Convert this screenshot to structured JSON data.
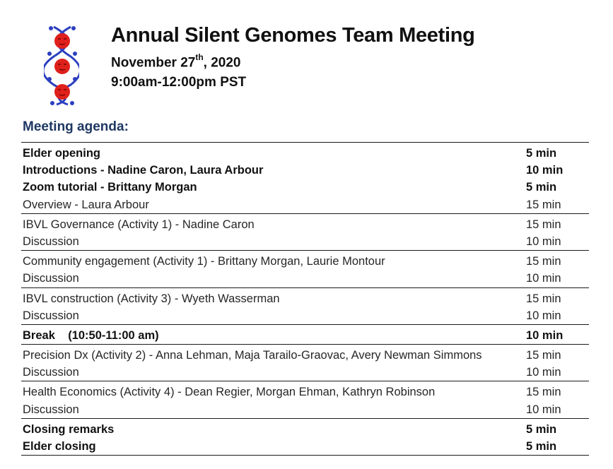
{
  "header": {
    "title": "Annual Silent Genomes Team Meeting",
    "date_main": "November 27",
    "date_sup": "th",
    "date_year": ", 2020",
    "time": "9:00am-12:00pm PST",
    "logo_icon": "dna-helix-faces-icon"
  },
  "agenda": {
    "heading": "Meeting agenda:",
    "blocks": [
      [
        {
          "item": "Elder opening",
          "duration": "5 min",
          "bold": true
        },
        {
          "item": "Introductions - Nadine Caron, Laura Arbour",
          "duration": "10 min",
          "bold": true
        },
        {
          "item": "Zoom tutorial - Brittany Morgan",
          "duration": "5 min",
          "bold": true
        },
        {
          "item": "Overview - Laura Arbour",
          "duration": "15 min",
          "bold": false
        }
      ],
      [
        {
          "item": "IBVL Governance (Activity 1) - Nadine Caron",
          "duration": "15 min",
          "bold": false
        },
        {
          "item": "Discussion",
          "duration": "10 min",
          "bold": false
        }
      ],
      [
        {
          "item": "Community engagement (Activity 1) - Brittany Morgan, Laurie Montour",
          "duration": "15 min",
          "bold": false
        },
        {
          "item": "Discussion",
          "duration": "10 min",
          "bold": false
        }
      ],
      [
        {
          "item": "IBVL construction (Activity 3) - Wyeth Wasserman",
          "duration": "15 min",
          "bold": false
        },
        {
          "item": "Discussion",
          "duration": "10 min",
          "bold": false
        }
      ],
      [
        {
          "item": "Break    (10:50-11:00 am)",
          "duration": "10 min",
          "bold": true
        }
      ],
      [
        {
          "item": "Precision Dx (Activity 2) - Anna Lehman, Maja Tarailo-Graovac, Avery Newman Simmons",
          "duration": "15 min",
          "bold": false
        },
        {
          "item": "Discussion",
          "duration": "10 min",
          "bold": false
        }
      ],
      [
        {
          "item": "Health Economics (Activity 4) - Dean Regier, Morgan Ehman, Kathryn Robinson",
          "duration": "15 min",
          "bold": false
        },
        {
          "item": "Discussion",
          "duration": "10 min",
          "bold": false
        }
      ],
      [
        {
          "item": "Closing remarks",
          "duration": "5 min",
          "bold": true
        },
        {
          "item": "Elder closing",
          "duration": "5 min",
          "bold": true
        }
      ]
    ]
  },
  "colors": {
    "heading_blue": "#1f3864",
    "logo_red": "#e0201b",
    "logo_blue": "#2c3fbf"
  }
}
